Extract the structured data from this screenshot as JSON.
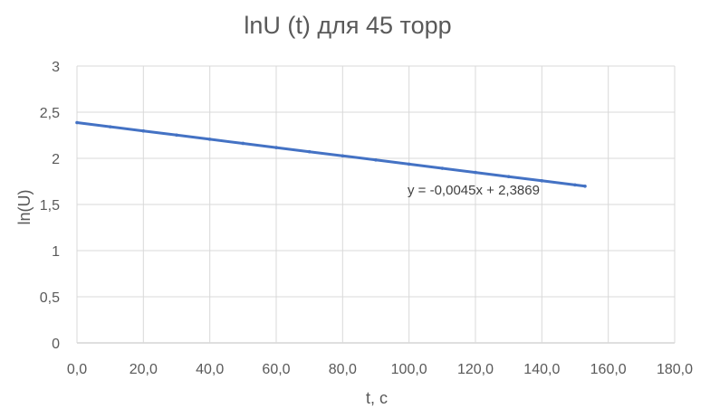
{
  "chart_data": {
    "type": "scatter",
    "title": "lnU (t) для 45 торр",
    "xlabel": "t, c",
    "ylabel": "ln(U)",
    "xlim": [
      0,
      180
    ],
    "ylim": [
      0,
      3
    ],
    "x_ticks": [
      "0,0",
      "20,0",
      "40,0",
      "60,0",
      "80,0",
      "100,0",
      "120,0",
      "140,0",
      "160,0",
      "180,0"
    ],
    "y_ticks": [
      "0",
      "0,5",
      "1",
      "1,5",
      "2",
      "2,5",
      "3"
    ],
    "grid": true,
    "series": [
      {
        "x": [
          0,
          10,
          20,
          30,
          40,
          50,
          60,
          70,
          80,
          90,
          100,
          110,
          120,
          130,
          140,
          150,
          153
        ],
        "y": [
          2.387,
          2.342,
          2.297,
          2.252,
          2.207,
          2.162,
          2.117,
          2.072,
          2.027,
          1.982,
          1.937,
          1.892,
          1.847,
          1.802,
          1.757,
          1.712,
          1.698
        ],
        "color": "#4472c4"
      }
    ],
    "trendline": {
      "equation": "y = -0,0045x + 2,3869",
      "slope": -0.0045,
      "intercept": 2.3869,
      "color": "#4472c4"
    }
  }
}
